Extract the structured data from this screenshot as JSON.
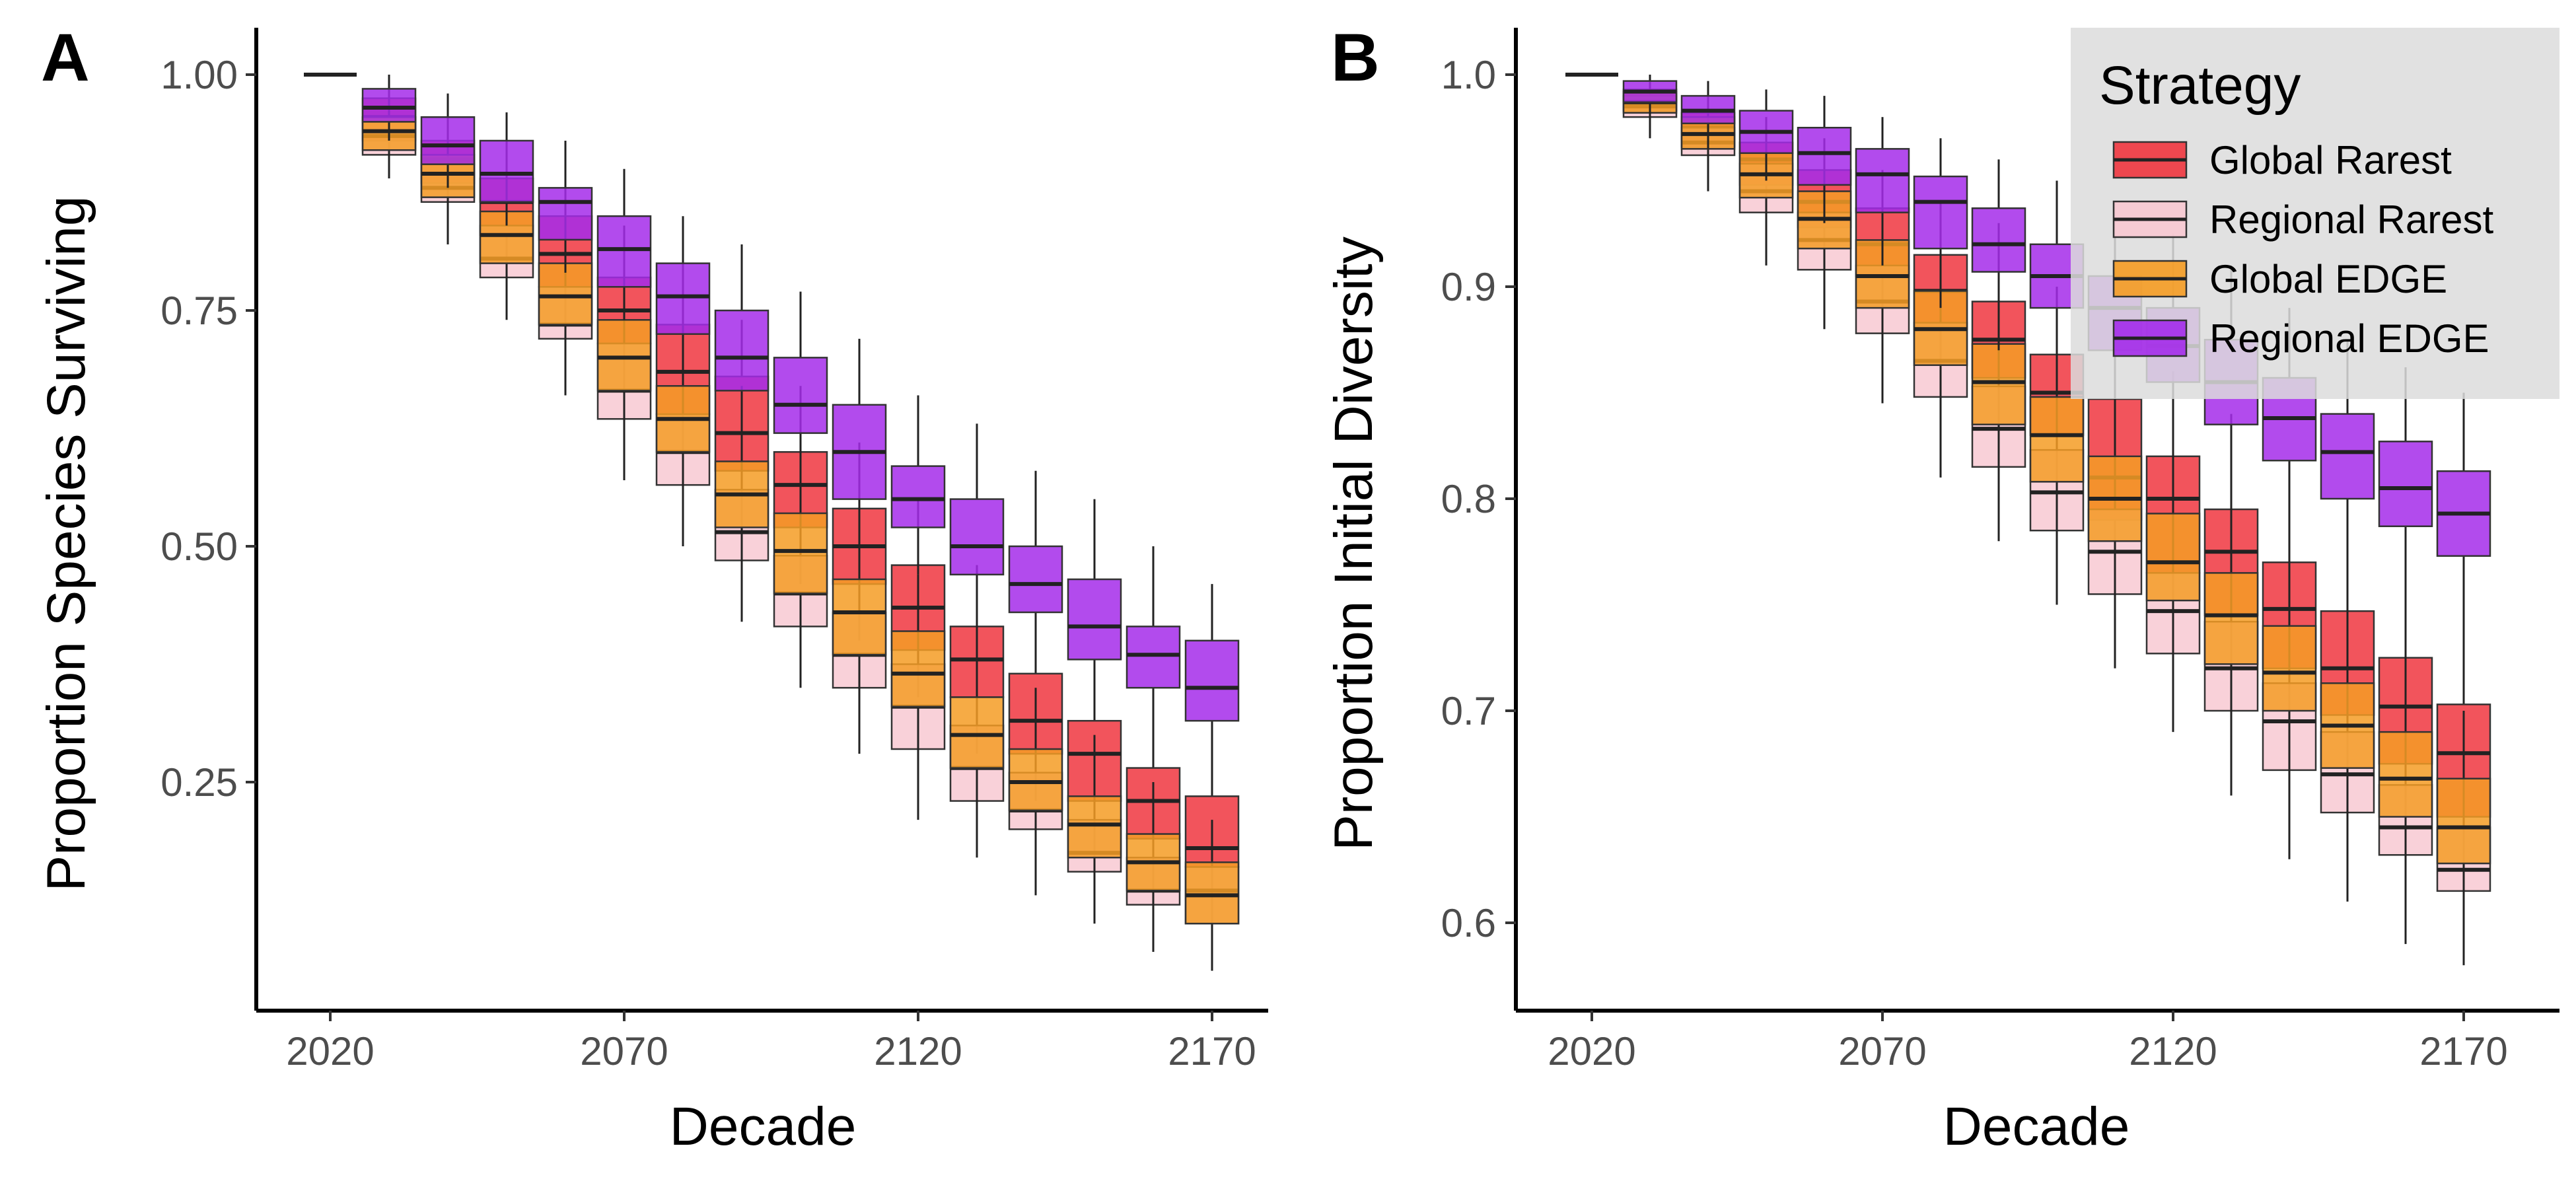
{
  "legend": {
    "title": "Strategy",
    "items": [
      {
        "name": "Global Rarest",
        "color": "#F0363F"
      },
      {
        "name": "Regional Rarest",
        "color": "#F8C9D2"
      },
      {
        "name": "Global EDGE",
        "color": "#F59C24"
      },
      {
        "name": "Regional EDGE",
        "color": "#A42BEA"
      }
    ],
    "background": "#DCDCDC",
    "placement": "top-right of panel B"
  },
  "chart_data": [
    {
      "type": "box",
      "panel": "A",
      "xlabel": "Decade",
      "ylabel": "Proportion Species Surviving",
      "x_ticks": [
        "2020",
        "2070",
        "2120",
        "2170"
      ],
      "y_ticks": [
        "0.25",
        "0.50",
        "0.75",
        "1.00"
      ],
      "ylim": [
        0.07,
        1.05
      ],
      "decades": [
        2020,
        2030,
        2040,
        2050,
        2060,
        2070,
        2080,
        2090,
        2100,
        2110,
        2120,
        2130,
        2140,
        2150,
        2160,
        2170
      ],
      "series": [
        {
          "name": "Global Rarest",
          "color": "#F0363F",
          "boxes": [
            [
              1,
              1,
              1,
              1,
              1
            ],
            [
              0.91,
              0.93,
              0.955,
              0.975,
              0.99
            ],
            [
              0.85,
              0.885,
              0.91,
              0.93,
              0.96
            ],
            [
              0.78,
              0.83,
              0.865,
              0.89,
              0.93
            ],
            [
              0.72,
              0.775,
              0.81,
              0.85,
              0.895
            ],
            [
              0.66,
              0.715,
              0.75,
              0.785,
              0.84
            ],
            [
              0.58,
              0.64,
              0.685,
              0.735,
              0.8
            ],
            [
              0.52,
              0.58,
              0.62,
              0.68,
              0.74
            ],
            [
              0.46,
              0.52,
              0.565,
              0.6,
              0.67
            ],
            [
              0.4,
              0.46,
              0.5,
              0.54,
              0.61
            ],
            [
              0.34,
              0.39,
              0.435,
              0.48,
              0.55
            ],
            [
              0.28,
              0.34,
              0.38,
              0.415,
              0.48
            ],
            [
              0.23,
              0.28,
              0.315,
              0.365,
              0.42
            ],
            [
              0.17,
              0.23,
              0.28,
              0.315,
              0.37
            ],
            [
              0.13,
              0.19,
              0.23,
              0.265,
              0.32
            ],
            [
              0.1,
              0.16,
              0.18,
              0.235,
              0.27
            ]
          ]
        },
        {
          "name": "Regional Rarest",
          "color": "#F8C9D2",
          "boxes": [
            [
              1,
              1,
              1,
              1,
              1
            ],
            [
              0.89,
              0.915,
              0.935,
              0.955,
              0.98
            ],
            [
              0.82,
              0.865,
              0.88,
              0.905,
              0.94
            ],
            [
              0.74,
              0.785,
              0.805,
              0.84,
              0.89
            ],
            [
              0.66,
              0.72,
              0.735,
              0.775,
              0.83
            ],
            [
              0.57,
              0.635,
              0.665,
              0.715,
              0.79
            ],
            [
              0.5,
              0.565,
              0.6,
              0.64,
              0.72
            ],
            [
              0.42,
              0.485,
              0.515,
              0.56,
              0.65
            ],
            [
              0.35,
              0.415,
              0.45,
              0.49,
              0.58
            ],
            [
              0.28,
              0.35,
              0.385,
              0.43,
              0.51
            ],
            [
              0.21,
              0.285,
              0.33,
              0.375,
              0.45
            ],
            [
              0.17,
              0.23,
              0.265,
              0.31,
              0.39
            ],
            [
              0.13,
              0.2,
              0.22,
              0.26,
              0.33
            ],
            [
              0.1,
              0.155,
              0.175,
              0.21,
              0.28
            ],
            [
              0.07,
              0.12,
              0.135,
              0.17,
              0.22
            ],
            [
              0.05,
              0.1,
              0.135,
              0.16,
              0.19
            ]
          ]
        },
        {
          "name": "Global EDGE",
          "color": "#F59C24",
          "boxes": [
            [
              1,
              1,
              1,
              1,
              1
            ],
            [
              0.9,
              0.92,
              0.94,
              0.955,
              0.98
            ],
            [
              0.84,
              0.87,
              0.895,
              0.915,
              0.95
            ],
            [
              0.76,
              0.8,
              0.83,
              0.855,
              0.9
            ],
            [
              0.68,
              0.735,
              0.765,
              0.8,
              0.85
            ],
            [
              0.6,
              0.665,
              0.7,
              0.74,
              0.8
            ],
            [
              0.53,
              0.6,
              0.635,
              0.67,
              0.74
            ],
            [
              0.45,
              0.52,
              0.555,
              0.59,
              0.67
            ],
            [
              0.38,
              0.45,
              0.495,
              0.535,
              0.6
            ],
            [
              0.32,
              0.385,
              0.43,
              0.465,
              0.53
            ],
            [
              0.26,
              0.33,
              0.365,
              0.41,
              0.47
            ],
            [
              0.2,
              0.265,
              0.3,
              0.34,
              0.42
            ],
            [
              0.16,
              0.22,
              0.25,
              0.285,
              0.35
            ],
            [
              0.12,
              0.17,
              0.205,
              0.235,
              0.3
            ],
            [
              0.09,
              0.135,
              0.165,
              0.195,
              0.25
            ],
            [
              0.07,
              0.1,
              0.13,
              0.165,
              0.21
            ]
          ]
        },
        {
          "name": "Regional EDGE",
          "color": "#A42BEA",
          "boxes": [
            [
              1,
              1,
              1,
              1,
              1
            ],
            [
              0.93,
              0.95,
              0.965,
              0.985,
              1
            ],
            [
              0.88,
              0.905,
              0.925,
              0.955,
              0.98
            ],
            [
              0.84,
              0.865,
              0.895,
              0.93,
              0.96
            ],
            [
              0.79,
              0.825,
              0.865,
              0.88,
              0.93
            ],
            [
              0.74,
              0.775,
              0.815,
              0.85,
              0.9
            ],
            [
              0.69,
              0.725,
              0.765,
              0.8,
              0.85
            ],
            [
              0.62,
              0.665,
              0.7,
              0.75,
              0.82
            ],
            [
              0.57,
              0.62,
              0.65,
              0.7,
              0.77
            ],
            [
              0.51,
              0.55,
              0.6,
              0.65,
              0.72
            ],
            [
              0.47,
              0.52,
              0.55,
              0.585,
              0.66
            ],
            [
              0.42,
              0.47,
              0.5,
              0.55,
              0.63
            ],
            [
              0.38,
              0.43,
              0.46,
              0.5,
              0.58
            ],
            [
              0.33,
              0.38,
              0.415,
              0.465,
              0.55
            ],
            [
              0.3,
              0.35,
              0.385,
              0.415,
              0.5
            ],
            [
              0.26,
              0.315,
              0.35,
              0.4,
              0.46
            ]
          ]
        }
      ]
    },
    {
      "type": "box",
      "panel": "B",
      "xlabel": "Decade",
      "ylabel": "Proportion Initial Diversity",
      "x_ticks": [
        "2020",
        "2070",
        "2120",
        "2170"
      ],
      "y_ticks": [
        "0.6",
        "0.7",
        "0.8",
        "0.9",
        "1.0"
      ],
      "ylim": [
        0.555,
        1.02
      ],
      "decades": [
        2020,
        2030,
        2040,
        2050,
        2060,
        2070,
        2080,
        2090,
        2100,
        2110,
        2120,
        2130,
        2140,
        2150,
        2160,
        2170
      ],
      "series": [
        {
          "name": "Global Rarest",
          "color": "#F0363F",
          "boxes": [
            [
              1,
              1,
              1,
              1,
              1
            ],
            [
              0.975,
              0.983,
              0.988,
              0.993,
              0.998
            ],
            [
              0.955,
              0.966,
              0.975,
              0.982,
              0.99
            ],
            [
              0.93,
              0.948,
              0.96,
              0.968,
              0.98
            ],
            [
              0.91,
              0.928,
              0.94,
              0.955,
              0.97
            ],
            [
              0.88,
              0.905,
              0.92,
              0.937,
              0.955
            ],
            [
              0.85,
              0.88,
              0.898,
              0.915,
              0.94
            ],
            [
              0.82,
              0.857,
              0.875,
              0.893,
              0.93
            ],
            [
              0.79,
              0.83,
              0.85,
              0.868,
              0.9
            ],
            [
              0.76,
              0.79,
              0.81,
              0.847,
              0.88
            ],
            [
              0.74,
              0.765,
              0.8,
              0.82,
              0.86
            ],
            [
              0.72,
              0.745,
              0.775,
              0.795,
              0.84
            ],
            [
              0.69,
              0.72,
              0.748,
              0.77,
              0.81
            ],
            [
              0.66,
              0.698,
              0.72,
              0.747,
              0.78
            ],
            [
              0.64,
              0.675,
              0.702,
              0.725,
              0.77
            ],
            [
              0.61,
              0.65,
              0.68,
              0.703,
              0.74
            ]
          ]
        },
        {
          "name": "Regional Rarest",
          "color": "#F8C9D2",
          "boxes": [
            [
              1,
              1,
              1,
              1,
              1
            ],
            [
              0.97,
              0.98,
              0.985,
              0.99,
              0.995
            ],
            [
              0.945,
              0.962,
              0.968,
              0.975,
              0.985
            ],
            [
              0.91,
              0.935,
              0.945,
              0.958,
              0.975
            ],
            [
              0.88,
              0.908,
              0.922,
              0.935,
              0.955
            ],
            [
              0.845,
              0.878,
              0.893,
              0.91,
              0.935
            ],
            [
              0.81,
              0.848,
              0.865,
              0.883,
              0.91
            ],
            [
              0.78,
              0.815,
              0.833,
              0.853,
              0.885
            ],
            [
              0.75,
              0.785,
              0.803,
              0.823,
              0.855
            ],
            [
              0.72,
              0.755,
              0.775,
              0.795,
              0.83
            ],
            [
              0.69,
              0.727,
              0.747,
              0.765,
              0.8
            ],
            [
              0.66,
              0.7,
              0.72,
              0.742,
              0.78
            ],
            [
              0.63,
              0.672,
              0.695,
              0.713,
              0.75
            ],
            [
              0.61,
              0.652,
              0.67,
              0.69,
              0.73
            ],
            [
              0.59,
              0.632,
              0.645,
              0.665,
              0.7
            ],
            [
              0.58,
              0.615,
              0.625,
              0.645,
              0.68
            ]
          ]
        },
        {
          "name": "Global EDGE",
          "color": "#F59C24",
          "boxes": [
            [
              1,
              1,
              1,
              1,
              1
            ],
            [
              0.972,
              0.982,
              0.987,
              0.992,
              0.997
            ],
            [
              0.95,
              0.965,
              0.972,
              0.98,
              0.988
            ],
            [
              0.92,
              0.942,
              0.953,
              0.963,
              0.978
            ],
            [
              0.89,
              0.918,
              0.932,
              0.945,
              0.965
            ],
            [
              0.86,
              0.89,
              0.905,
              0.922,
              0.945
            ],
            [
              0.83,
              0.863,
              0.88,
              0.898,
              0.925
            ],
            [
              0.8,
              0.835,
              0.855,
              0.873,
              0.905
            ],
            [
              0.77,
              0.808,
              0.83,
              0.848,
              0.88
            ],
            [
              0.74,
              0.78,
              0.8,
              0.82,
              0.86
            ],
            [
              0.71,
              0.752,
              0.77,
              0.793,
              0.83
            ],
            [
              0.68,
              0.722,
              0.745,
              0.765,
              0.8
            ],
            [
              0.66,
              0.7,
              0.718,
              0.74,
              0.78
            ],
            [
              0.63,
              0.673,
              0.693,
              0.713,
              0.75
            ],
            [
              0.61,
              0.65,
              0.668,
              0.69,
              0.73
            ],
            [
              0.59,
              0.628,
              0.645,
              0.668,
              0.7
            ]
          ]
        },
        {
          "name": "Regional EDGE",
          "color": "#A42BEA",
          "boxes": [
            [
              1,
              1,
              1,
              1,
              1
            ],
            [
              0.98,
              0.987,
              0.992,
              0.997,
              1
            ],
            [
              0.965,
              0.977,
              0.983,
              0.99,
              0.997
            ],
            [
              0.95,
              0.963,
              0.973,
              0.983,
              0.993
            ],
            [
              0.93,
              0.948,
              0.963,
              0.975,
              0.99
            ],
            [
              0.91,
              0.935,
              0.953,
              0.965,
              0.98
            ],
            [
              0.89,
              0.918,
              0.94,
              0.952,
              0.97
            ],
            [
              0.87,
              0.907,
              0.92,
              0.937,
              0.96
            ],
            [
              0.85,
              0.89,
              0.905,
              0.92,
              0.95
            ],
            [
              0.83,
              0.87,
              0.89,
              0.905,
              0.94
            ],
            [
              0.82,
              0.855,
              0.872,
              0.89,
              0.925
            ],
            [
              0.8,
              0.835,
              0.855,
              0.875,
              0.91
            ],
            [
              0.78,
              0.818,
              0.838,
              0.857,
              0.89
            ],
            [
              0.77,
              0.8,
              0.822,
              0.84,
              0.875
            ],
            [
              0.75,
              0.787,
              0.805,
              0.827,
              0.862
            ],
            [
              0.73,
              0.773,
              0.793,
              0.813,
              0.85
            ]
          ]
        }
      ]
    }
  ],
  "panel_labels": [
    "A",
    "B"
  ]
}
